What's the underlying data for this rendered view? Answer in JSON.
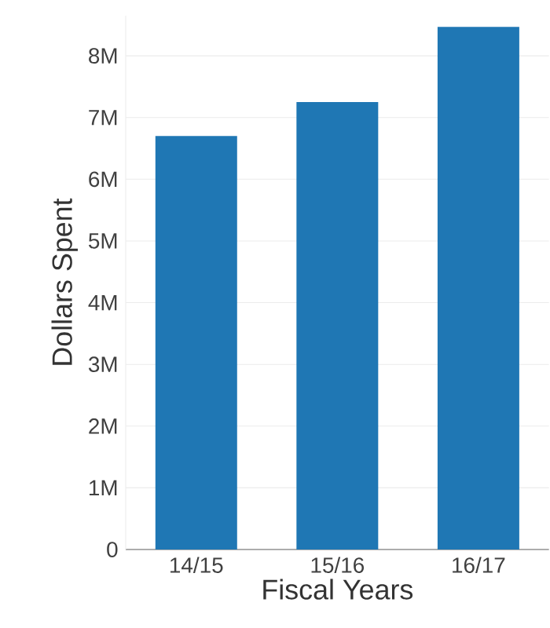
{
  "chart_data": {
    "type": "bar",
    "xlabel": "Fiscal Years",
    "ylabel": "Dollars Spent",
    "categories": [
      "14/15",
      "15/16",
      "16/17"
    ],
    "values": [
      6700000,
      7250000,
      8470000
    ],
    "color": "#1f77b4",
    "ylim": [
      0,
      8650000
    ],
    "yticks": [
      {
        "value": 0,
        "label": "0"
      },
      {
        "value": 1000000,
        "label": "1M"
      },
      {
        "value": 2000000,
        "label": "2M"
      },
      {
        "value": 3000000,
        "label": "3M"
      },
      {
        "value": 4000000,
        "label": "4M"
      },
      {
        "value": 5000000,
        "label": "5M"
      },
      {
        "value": 6000000,
        "label": "6M"
      },
      {
        "value": 7000000,
        "label": "7M"
      },
      {
        "value": 8000000,
        "label": "8M"
      }
    ],
    "grid": "y"
  }
}
